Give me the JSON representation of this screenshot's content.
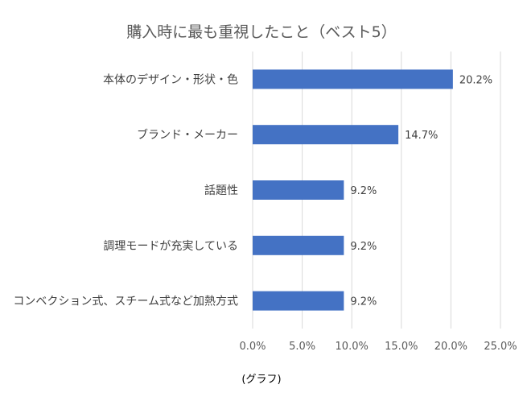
{
  "chart_data": {
    "type": "bar",
    "orientation": "horizontal",
    "title": "購入時に最も重視したこと（ベスト5）",
    "categories": [
      "本体のデザイン・形状・色",
      "ブランド・メーカー",
      "話題性",
      "調理モードが充実している",
      "コンベクション式、スチーム式など加熱方式"
    ],
    "values": [
      20.2,
      14.7,
      9.2,
      9.2,
      9.2
    ],
    "value_labels": [
      "20.2%",
      "14.7%",
      "9.2%",
      "9.2%",
      "9.2%"
    ],
    "x_ticks": [
      0,
      5,
      10,
      15,
      20,
      25
    ],
    "x_tick_labels": [
      "0.0%",
      "5.0%",
      "10.0%",
      "15.0%",
      "20.0%",
      "25.0%"
    ],
    "xlim": [
      0,
      25
    ],
    "grid": true,
    "legend": false,
    "bar_color": "#4472C4"
  },
  "caption": "(グラフ)"
}
